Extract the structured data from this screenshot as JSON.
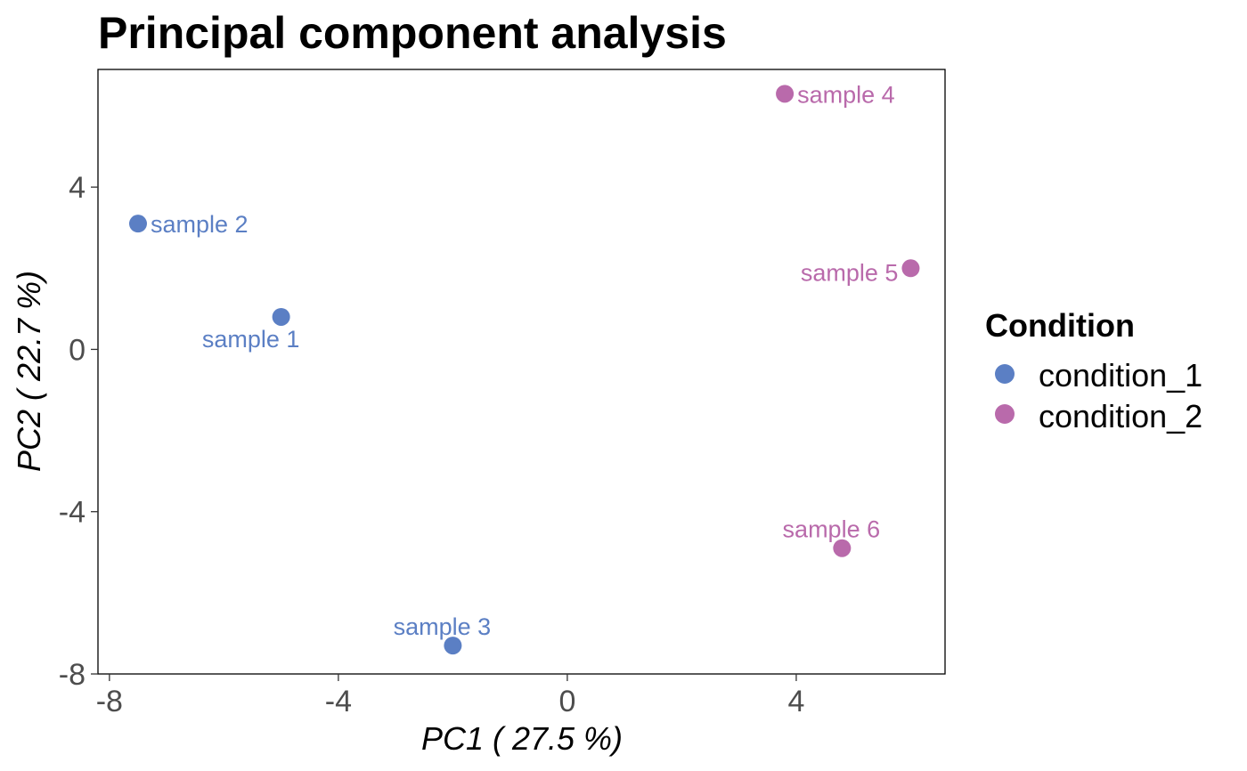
{
  "chart_data": {
    "type": "scatter",
    "title": "Principal component analysis",
    "xlabel": "PC1 ( 27.5 %)",
    "ylabel": "PC2 ( 22.7 %)",
    "xlim": [
      -8.2,
      6.6
    ],
    "ylim": [
      -8.0,
      6.9
    ],
    "xticks": [
      {
        "value": -8,
        "label": "-8"
      },
      {
        "value": -4,
        "label": "-4"
      },
      {
        "value": 0,
        "label": "0"
      },
      {
        "value": 4,
        "label": "4"
      }
    ],
    "yticks": [
      {
        "value": -8,
        "label": "-8"
      },
      {
        "value": -4,
        "label": "-4"
      },
      {
        "value": 0,
        "label": "0"
      },
      {
        "value": 4,
        "label": "4"
      }
    ],
    "legend": {
      "title": "Condition",
      "position": "right",
      "entries": [
        {
          "label": "condition_1",
          "color": "#5b7fc4"
        },
        {
          "label": "condition_2",
          "color": "#b96aab"
        }
      ]
    },
    "points": [
      {
        "label": "sample 1",
        "x": -5.0,
        "y": 0.8,
        "condition": "condition_1",
        "color": "#5b7fc4",
        "label_pos": "below-left"
      },
      {
        "label": "sample 2",
        "x": -7.5,
        "y": 3.1,
        "condition": "condition_1",
        "color": "#5b7fc4",
        "label_pos": "right"
      },
      {
        "label": "sample 3",
        "x": -2.0,
        "y": -7.3,
        "condition": "condition_1",
        "color": "#5b7fc4",
        "label_pos": "above"
      },
      {
        "label": "sample 4",
        "x": 3.8,
        "y": 6.3,
        "condition": "condition_2",
        "color": "#b96aab",
        "label_pos": "right"
      },
      {
        "label": "sample 5",
        "x": 6.0,
        "y": 2.0,
        "condition": "condition_2",
        "color": "#b96aab",
        "label_pos": "left"
      },
      {
        "label": "sample 6",
        "x": 4.8,
        "y": -4.9,
        "condition": "condition_2",
        "color": "#b96aab",
        "label_pos": "above"
      }
    ]
  }
}
